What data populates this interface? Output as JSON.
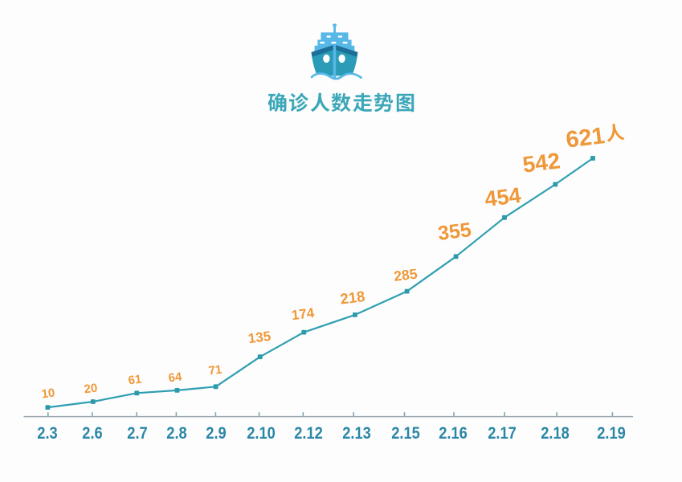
{
  "page": {
    "background": "#fdfdfd",
    "kind": "infographic line chart"
  },
  "header": {
    "icon": "cruise-ship-icon",
    "title": "确诊人数走势图"
  },
  "palette": {
    "line": "#2f9fb0",
    "marker": "#2b9aab",
    "data_label": "#ef9839",
    "tick_label": "#2a87a6",
    "axis": "#9aa8ae",
    "tick": "#84a2b0",
    "title": "#3ba7b8",
    "ship_light": "#57b8e8",
    "ship_hull": "#2a9cb7",
    "ship_dark": "#1d6f99"
  },
  "chart_data": {
    "type": "line",
    "title": "确诊人数走势图",
    "series_name": "确诊人数",
    "categories": [
      "2.3",
      "2.6",
      "2.7",
      "2.8",
      "2.9",
      "2.10",
      "2.12",
      "2.13",
      "2.15",
      "2.16",
      "2.17",
      "2.18",
      "2.19"
    ],
    "values": [
      10,
      20,
      61,
      64,
      71,
      135,
      174,
      218,
      285,
      355,
      454,
      542,
      621
    ],
    "point_labels": [
      "10",
      "20",
      "61",
      "64",
      "71",
      "135",
      "174",
      "218",
      "285",
      "355",
      "454",
      "542",
      "621人"
    ],
    "unit": "人",
    "xlabel": "",
    "ylabel": "",
    "grid": false,
    "legend": "none",
    "y_axis_visible": false,
    "x_axis_visible": true,
    "tick_direction": "in",
    "marker": "square",
    "label_style": "labels grow with value, tilted -7deg, above points"
  }
}
